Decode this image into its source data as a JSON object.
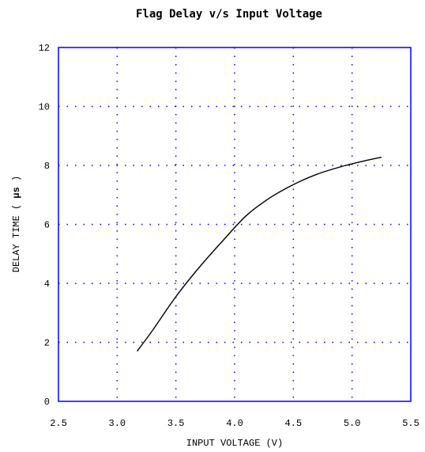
{
  "chart_data": {
    "type": "line",
    "title": "Flag Delay v/s Input Voltage",
    "xlabel": "INPUT VOLTAGE (V)",
    "ylabel_prefix": "DELAY TIME ( ",
    "ylabel_unit": "μs",
    "ylabel_suffix": " )",
    "xlim": [
      2.5,
      5.5
    ],
    "ylim": [
      0,
      12
    ],
    "xticks": [
      "2.5",
      "3.0",
      "3.5",
      "4.0",
      "4.5",
      "5.0",
      "5.5"
    ],
    "yticks": [
      "0",
      "2",
      "4",
      "6",
      "8",
      "10",
      "12"
    ],
    "grid": true,
    "grid_color": "#0000ff",
    "line_color": "#000000",
    "series": [
      {
        "x": [
          3.17,
          3.3,
          3.5,
          3.7,
          3.9,
          4.1,
          4.3,
          4.5,
          4.7,
          4.9,
          5.1,
          5.25
        ],
        "y": [
          1.7,
          2.4,
          3.55,
          4.55,
          5.45,
          6.3,
          6.9,
          7.35,
          7.7,
          7.95,
          8.15,
          8.28
        ]
      }
    ]
  }
}
